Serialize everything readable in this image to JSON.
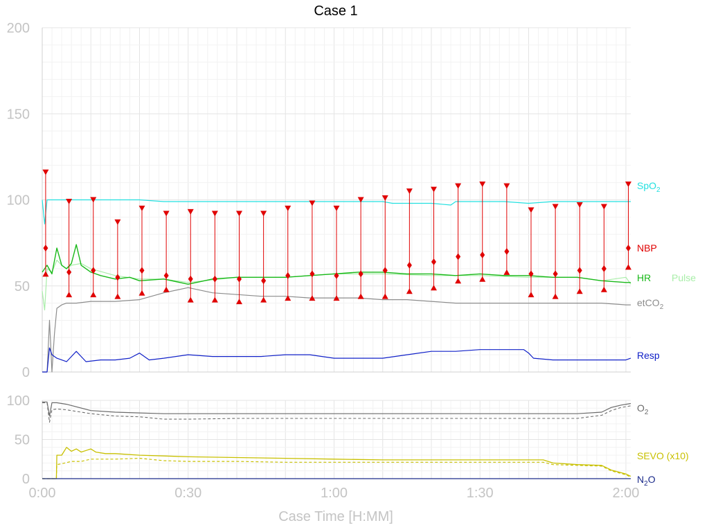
{
  "chart_data": [
    {
      "type": "line",
      "title": "Case 1",
      "ylim": [
        0,
        200
      ],
      "xlim_minutes": [
        0,
        121
      ],
      "y_ticks": [
        "0",
        "50",
        "100",
        "150",
        "200"
      ],
      "grid": true,
      "colors": {
        "spo2": "#22e0e0",
        "nbp": "#e00000",
        "hr": "#18b818",
        "pulse": "#a8eea8",
        "etco2": "#8c8c8c",
        "resp": "#1020c8"
      },
      "series": [
        {
          "key": "spo2",
          "label": "SpO",
          "label_sub": "2",
          "x": [
            0,
            0.5,
            1,
            5,
            10,
            15,
            20,
            25,
            30,
            35,
            40,
            45,
            50,
            55,
            60,
            65,
            70,
            72,
            75,
            80,
            84,
            85,
            90,
            95,
            100,
            105,
            110,
            115,
            120,
            121
          ],
          "y": [
            100,
            86,
            100,
            100,
            100,
            100,
            100,
            99,
            99,
            99,
            99,
            99,
            99,
            99,
            99,
            99,
            99,
            98,
            98,
            98,
            97,
            99,
            99,
            99,
            98,
            99,
            99,
            99,
            99,
            99
          ]
        },
        {
          "key": "hr",
          "label": "HR",
          "x": [
            0,
            1,
            2,
            3,
            4,
            5,
            6,
            7,
            8,
            9,
            10,
            12,
            15,
            18,
            20,
            25,
            30,
            35,
            40,
            45,
            50,
            55,
            60,
            65,
            70,
            75,
            80,
            85,
            90,
            95,
            100,
            105,
            110,
            115,
            120,
            121
          ],
          "y": [
            58,
            62,
            57,
            72,
            62,
            60,
            63,
            74,
            62,
            60,
            58,
            56,
            54,
            55,
            53,
            54,
            51,
            54,
            55,
            55,
            55,
            56,
            57,
            58,
            58,
            57,
            57,
            56,
            57,
            56,
            56,
            55,
            55,
            53,
            52,
            52
          ]
        },
        {
          "key": "pulse",
          "label": "Pulse",
          "x": [
            0,
            0.5,
            1,
            2,
            3,
            4,
            5,
            6,
            8,
            10,
            15,
            20,
            25,
            30,
            40,
            50,
            60,
            70,
            80,
            90,
            100,
            110,
            115,
            120,
            121
          ],
          "y": [
            47,
            36,
            60,
            58,
            65,
            62,
            60,
            62,
            63,
            60,
            56,
            54,
            54,
            52,
            55,
            55,
            57,
            57,
            56,
            56,
            55,
            55,
            53,
            55,
            51
          ]
        },
        {
          "key": "etco2",
          "label": "etCO",
          "label_sub": "2",
          "x": [
            0,
            1,
            1.5,
            2,
            2.5,
            3,
            4,
            5,
            7,
            10,
            15,
            20,
            25,
            30,
            35,
            40,
            45,
            50,
            55,
            60,
            65,
            70,
            75,
            80,
            85,
            90,
            95,
            100,
            105,
            110,
            115,
            120,
            121
          ],
          "y": [
            0,
            0,
            30,
            0,
            22,
            37,
            39,
            40,
            40,
            41,
            41,
            42,
            46,
            49,
            46,
            45,
            44,
            44,
            43,
            43,
            43,
            42,
            42,
            41,
            40,
            40,
            40,
            40,
            40,
            40,
            40,
            39,
            39
          ]
        },
        {
          "key": "resp",
          "label": "Resp",
          "x": [
            0,
            1,
            1.5,
            2,
            3,
            4,
            5,
            7,
            9,
            12,
            15,
            18,
            20,
            22,
            25,
            30,
            35,
            40,
            45,
            50,
            55,
            60,
            65,
            70,
            75,
            80,
            85,
            90,
            95,
            99,
            100,
            101,
            105,
            110,
            115,
            120,
            121
          ],
          "y": [
            0,
            0,
            14,
            10,
            8,
            7,
            6,
            12,
            6,
            7,
            7,
            8,
            11,
            7,
            8,
            10,
            9,
            9,
            9,
            10,
            10,
            8,
            8,
            8,
            10,
            12,
            12,
            13,
            13,
            13,
            11,
            8,
            7,
            7,
            7,
            7,
            8
          ]
        }
      ],
      "nbp": {
        "label": "NBP",
        "x": [
          0.7,
          5.5,
          10.5,
          15.5,
          20.5,
          25.5,
          30.5,
          35.5,
          40.5,
          45.5,
          50.5,
          55.5,
          60.5,
          65.5,
          70.5,
          75.5,
          80.5,
          85.5,
          90.5,
          95.5,
          100.5,
          105.5,
          110.5,
          115.5,
          120.5
        ],
        "systolic": [
          116,
          99,
          100,
          87,
          95,
          92,
          93,
          92,
          92,
          92,
          95,
          98,
          95,
          100,
          101,
          105,
          106,
          108,
          109,
          108,
          94,
          96,
          97,
          96,
          109
        ],
        "mean": [
          72,
          58,
          59,
          55,
          59,
          56,
          54,
          54,
          54,
          53,
          56,
          57,
          56,
          57,
          59,
          62,
          64,
          67,
          68,
          70,
          57,
          57,
          59,
          60,
          72
        ],
        "diastolic": [
          57,
          45,
          45,
          44,
          46,
          48,
          42,
          42,
          41,
          42,
          43,
          43,
          43,
          44,
          44,
          47,
          49,
          53,
          54,
          58,
          45,
          44,
          47,
          48,
          61
        ]
      }
    },
    {
      "type": "line",
      "ylim": [
        0,
        100
      ],
      "y_ticks": [
        "0",
        "50",
        "100"
      ],
      "x_ticks": [
        "0:00",
        "0:30",
        "1:00",
        "1:30",
        "2:00"
      ],
      "xlabel": "Case Time [H:MM]",
      "grid": true,
      "colors": {
        "o2": "#6a6a6a",
        "sevo": "#c8c000",
        "n2o": "#1a2a8a"
      },
      "series": [
        {
          "key": "o2",
          "label": "O",
          "label_sub": "2",
          "style": "solid",
          "x": [
            0,
            1,
            1.5,
            2,
            3,
            5,
            10,
            15,
            20,
            25,
            30,
            40,
            50,
            60,
            70,
            80,
            90,
            100,
            110,
            115,
            117,
            119,
            121
          ],
          "y": [
            98,
            98,
            80,
            97,
            97,
            95,
            87,
            85,
            84,
            83,
            83,
            83,
            83,
            83,
            83,
            83,
            83,
            83,
            83,
            85,
            91,
            94,
            96
          ]
        },
        {
          "key": "o2_exp",
          "style": "dashed",
          "x": [
            0,
            1,
            1.5,
            2,
            3,
            5,
            10,
            15,
            20,
            25,
            30,
            40,
            50,
            60,
            70,
            80,
            90,
            100,
            110,
            115,
            117,
            119,
            121
          ],
          "y": [
            97,
            97,
            72,
            88,
            89,
            88,
            83,
            80,
            79,
            76,
            76,
            77,
            77,
            77,
            77,
            77,
            77,
            77,
            77,
            81,
            87,
            91,
            93
          ]
        },
        {
          "key": "sevo",
          "label": "SEVO (x10)",
          "style": "solid",
          "x": [
            0,
            2.9,
            3.0,
            4,
            5,
            6,
            7,
            8,
            10,
            11,
            13,
            15,
            20,
            25,
            30,
            40,
            50,
            60,
            70,
            80,
            90,
            100,
            103,
            105,
            110,
            115,
            117,
            120,
            121
          ],
          "y": [
            0,
            0,
            30,
            30,
            40,
            35,
            38,
            34,
            38,
            34,
            32,
            32,
            30,
            29,
            28,
            27,
            26,
            25,
            24,
            24,
            24,
            24,
            24,
            20,
            18,
            17,
            11,
            6,
            3
          ]
        },
        {
          "key": "sevo_exp",
          "style": "dashed",
          "x": [
            0,
            2.9,
            3.0,
            4,
            6,
            8,
            10,
            15,
            20,
            25,
            30,
            40,
            50,
            60,
            70,
            80,
            90,
            100,
            103,
            105,
            110,
            115,
            117,
            120,
            121
          ],
          "y": [
            0,
            0,
            18,
            19,
            22,
            22,
            25,
            25,
            26,
            23,
            22,
            22,
            21,
            21,
            21,
            21,
            21,
            21,
            21,
            18,
            17,
            16,
            10,
            5,
            2
          ]
        },
        {
          "key": "n2o",
          "label": "N",
          "label_sub": "2",
          "label_suffix": "O",
          "style": "solid",
          "x": [
            0,
            121
          ],
          "y": [
            0,
            0
          ]
        }
      ]
    }
  ]
}
